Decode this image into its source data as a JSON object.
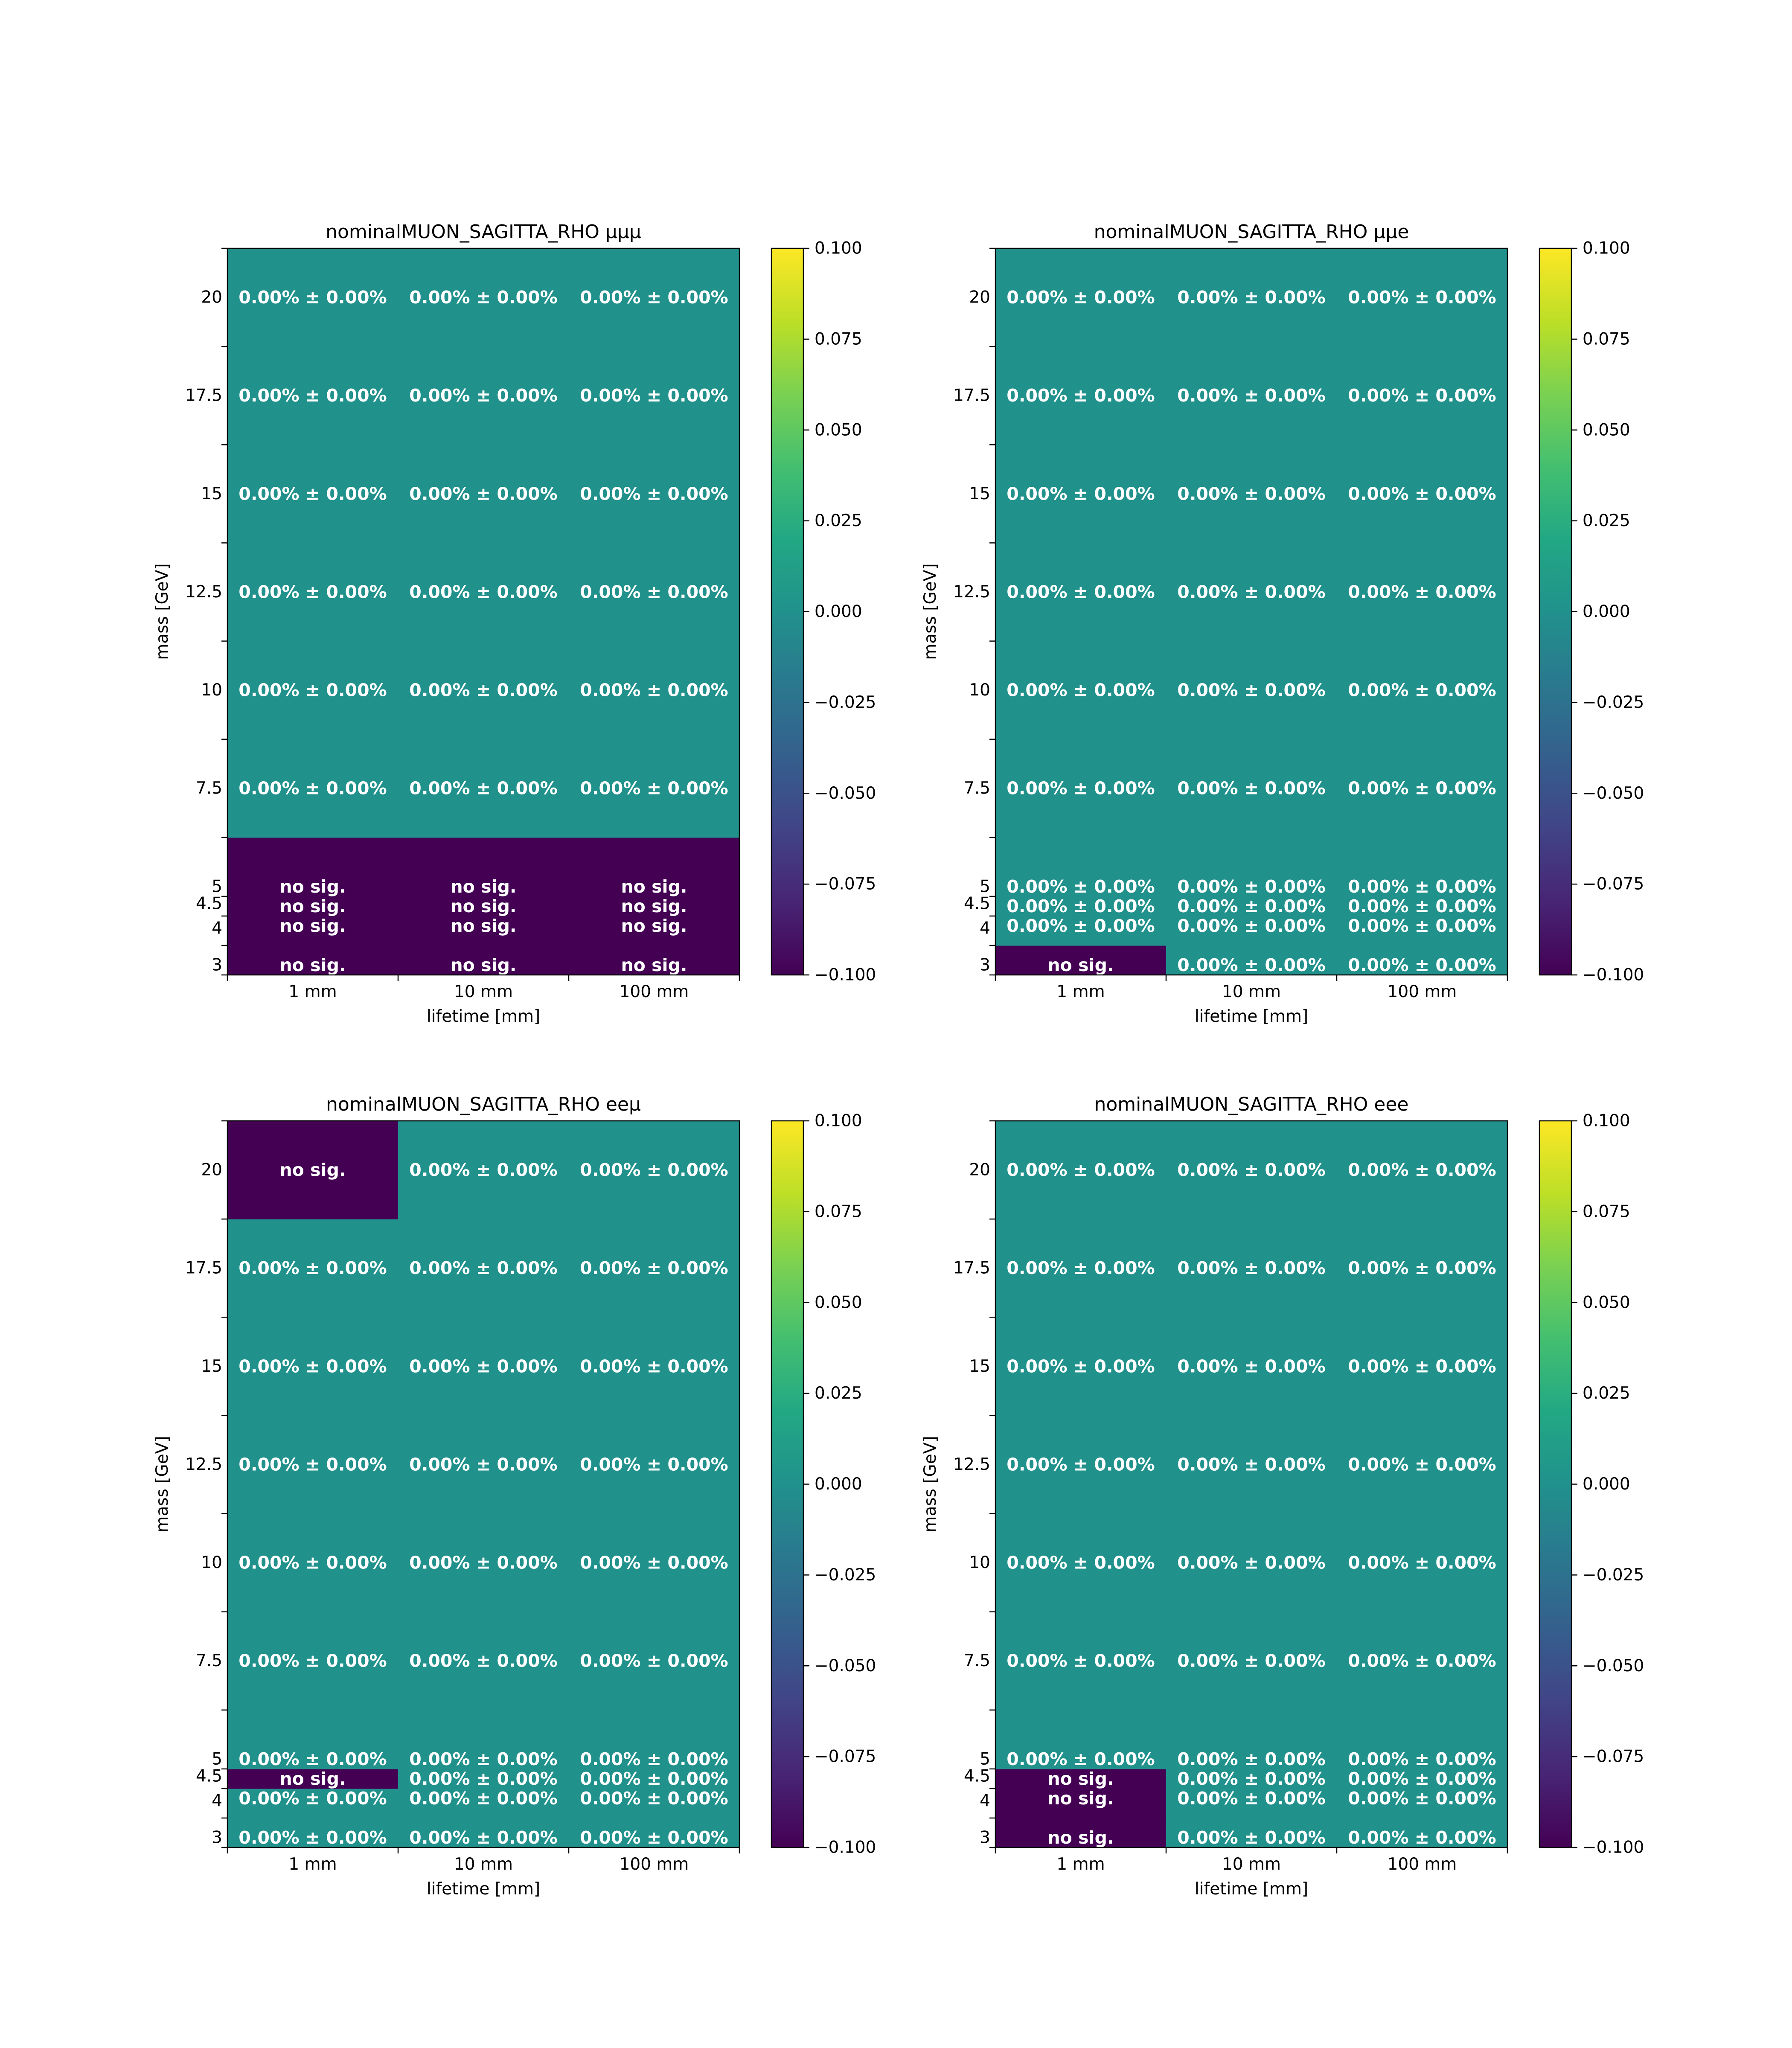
{
  "colorscale": {
    "name": "viridis",
    "stops": [
      "#440154",
      "#482475",
      "#414487",
      "#355f8d",
      "#2a788e",
      "#21918c",
      "#22a884",
      "#44bf70",
      "#7ad151",
      "#bddf26",
      "#fde725"
    ]
  },
  "chart_data": [
    {
      "type": "heatmap",
      "title": "nominalMUON_SAGITTA_RHO μμμ",
      "xlabel": "lifetime [mm]",
      "ylabel": "mass [GeV]",
      "x_ticklabels": [
        "1 mm",
        "10 mm",
        "100 mm"
      ],
      "y_ticks": [
        3,
        4,
        4.5,
        5,
        7.5,
        10,
        12.5,
        15,
        17.5,
        20
      ],
      "y_ticklabels": [
        "3",
        "4",
        "4.5",
        "5",
        "7.5",
        "10",
        "12.5",
        "15",
        "17.5",
        "20"
      ],
      "colorbar_ticks": [
        "0.100",
        "0.075",
        "0.050",
        "0.025",
        "0.000",
        "−0.025",
        "−0.050",
        "−0.075",
        "−0.100"
      ],
      "clim": [
        -0.1,
        0.1
      ],
      "values": [
        [
          -0.1,
          -0.1,
          -0.1
        ],
        [
          -0.1,
          -0.1,
          -0.1
        ],
        [
          -0.1,
          -0.1,
          -0.1
        ],
        [
          -0.1,
          -0.1,
          -0.1
        ],
        [
          0,
          0,
          0
        ],
        [
          0,
          0,
          0
        ],
        [
          0,
          0,
          0
        ],
        [
          0,
          0,
          0
        ],
        [
          0,
          0,
          0
        ],
        [
          0,
          0,
          0
        ]
      ],
      "labels": [
        [
          "no sig.",
          "no sig.",
          "no sig."
        ],
        [
          "no sig.",
          "no sig.",
          "no sig."
        ],
        [
          "no sig.",
          "no sig.",
          "no sig."
        ],
        [
          "no sig.",
          "no sig.",
          "no sig."
        ],
        [
          "0.00% ± 0.00%",
          "0.00% ± 0.00%",
          "0.00% ± 0.00%"
        ],
        [
          "0.00% ± 0.00%",
          "0.00% ± 0.00%",
          "0.00% ± 0.00%"
        ],
        [
          "0.00% ± 0.00%",
          "0.00% ± 0.00%",
          "0.00% ± 0.00%"
        ],
        [
          "0.00% ± 0.00%",
          "0.00% ± 0.00%",
          "0.00% ± 0.00%"
        ],
        [
          "0.00% ± 0.00%",
          "0.00% ± 0.00%",
          "0.00% ± 0.00%"
        ],
        [
          "0.00% ± 0.00%",
          "0.00% ± 0.00%",
          "0.00% ± 0.00%"
        ]
      ]
    },
    {
      "type": "heatmap",
      "title": "nominalMUON_SAGITTA_RHO μμe",
      "xlabel": "lifetime [mm]",
      "ylabel": "mass [GeV]",
      "x_ticklabels": [
        "1 mm",
        "10 mm",
        "100 mm"
      ],
      "y_ticks": [
        3,
        4,
        4.5,
        5,
        7.5,
        10,
        12.5,
        15,
        17.5,
        20
      ],
      "y_ticklabels": [
        "3",
        "4",
        "4.5",
        "5",
        "7.5",
        "10",
        "12.5",
        "15",
        "17.5",
        "20"
      ],
      "colorbar_ticks": [
        "0.100",
        "0.075",
        "0.050",
        "0.025",
        "0.000",
        "−0.025",
        "−0.050",
        "−0.075",
        "−0.100"
      ],
      "clim": [
        -0.1,
        0.1
      ],
      "values": [
        [
          -0.1,
          0,
          0
        ],
        [
          0,
          0,
          0
        ],
        [
          0,
          0,
          0
        ],
        [
          0,
          0,
          0
        ],
        [
          0,
          0,
          0
        ],
        [
          0,
          0,
          0
        ],
        [
          0,
          0,
          0
        ],
        [
          0,
          0,
          0
        ],
        [
          0,
          0,
          0
        ],
        [
          0,
          0,
          0
        ]
      ],
      "labels": [
        [
          "no sig.",
          "0.00% ± 0.00%",
          "0.00% ± 0.00%"
        ],
        [
          "0.00% ± 0.00%",
          "0.00% ± 0.00%",
          "0.00% ± 0.00%"
        ],
        [
          "0.00% ± 0.00%",
          "0.00% ± 0.00%",
          "0.00% ± 0.00%"
        ],
        [
          "0.00% ± 0.00%",
          "0.00% ± 0.00%",
          "0.00% ± 0.00%"
        ],
        [
          "0.00% ± 0.00%",
          "0.00% ± 0.00%",
          "0.00% ± 0.00%"
        ],
        [
          "0.00% ± 0.00%",
          "0.00% ± 0.00%",
          "0.00% ± 0.00%"
        ],
        [
          "0.00% ± 0.00%",
          "0.00% ± 0.00%",
          "0.00% ± 0.00%"
        ],
        [
          "0.00% ± 0.00%",
          "0.00% ± 0.00%",
          "0.00% ± 0.00%"
        ],
        [
          "0.00% ± 0.00%",
          "0.00% ± 0.00%",
          "0.00% ± 0.00%"
        ],
        [
          "0.00% ± 0.00%",
          "0.00% ± 0.00%",
          "0.00% ± 0.00%"
        ]
      ]
    },
    {
      "type": "heatmap",
      "title": "nominalMUON_SAGITTA_RHO eeμ",
      "xlabel": "lifetime [mm]",
      "ylabel": "mass [GeV]",
      "x_ticklabels": [
        "1 mm",
        "10 mm",
        "100 mm"
      ],
      "y_ticks": [
        3,
        4,
        4.5,
        5,
        7.5,
        10,
        12.5,
        15,
        17.5,
        20
      ],
      "y_ticklabels": [
        "3",
        "4",
        "4.5",
        "5",
        "7.5",
        "10",
        "12.5",
        "15",
        "17.5",
        "20"
      ],
      "colorbar_ticks": [
        "0.100",
        "0.075",
        "0.050",
        "0.025",
        "0.000",
        "−0.025",
        "−0.050",
        "−0.075",
        "−0.100"
      ],
      "clim": [
        -0.1,
        0.1
      ],
      "values": [
        [
          0,
          0,
          0
        ],
        [
          0,
          0,
          0
        ],
        [
          -0.1,
          0,
          0
        ],
        [
          0,
          0,
          0
        ],
        [
          0,
          0,
          0
        ],
        [
          0,
          0,
          0
        ],
        [
          0,
          0,
          0
        ],
        [
          0,
          0,
          0
        ],
        [
          0,
          0,
          0
        ],
        [
          -0.1,
          0,
          0
        ]
      ],
      "labels": [
        [
          "0.00% ± 0.00%",
          "0.00% ± 0.00%",
          "0.00% ± 0.00%"
        ],
        [
          "0.00% ± 0.00%",
          "0.00% ± 0.00%",
          "0.00% ± 0.00%"
        ],
        [
          "no sig.",
          "0.00% ± 0.00%",
          "0.00% ± 0.00%"
        ],
        [
          "0.00% ± 0.00%",
          "0.00% ± 0.00%",
          "0.00% ± 0.00%"
        ],
        [
          "0.00% ± 0.00%",
          "0.00% ± 0.00%",
          "0.00% ± 0.00%"
        ],
        [
          "0.00% ± 0.00%",
          "0.00% ± 0.00%",
          "0.00% ± 0.00%"
        ],
        [
          "0.00% ± 0.00%",
          "0.00% ± 0.00%",
          "0.00% ± 0.00%"
        ],
        [
          "0.00% ± 0.00%",
          "0.00% ± 0.00%",
          "0.00% ± 0.00%"
        ],
        [
          "0.00% ± 0.00%",
          "0.00% ± 0.00%",
          "0.00% ± 0.00%"
        ],
        [
          "no sig.",
          "0.00% ± 0.00%",
          "0.00% ± 0.00%"
        ]
      ]
    },
    {
      "type": "heatmap",
      "title": "nominalMUON_SAGITTA_RHO eee",
      "xlabel": "lifetime [mm]",
      "ylabel": "mass [GeV]",
      "x_ticklabels": [
        "1 mm",
        "10 mm",
        "100 mm"
      ],
      "y_ticks": [
        3,
        4,
        4.5,
        5,
        7.5,
        10,
        12.5,
        15,
        17.5,
        20
      ],
      "y_ticklabels": [
        "3",
        "4",
        "4.5",
        "5",
        "7.5",
        "10",
        "12.5",
        "15",
        "17.5",
        "20"
      ],
      "colorbar_ticks": [
        "0.100",
        "0.075",
        "0.050",
        "0.025",
        "0.000",
        "−0.025",
        "−0.050",
        "−0.075",
        "−0.100"
      ],
      "clim": [
        -0.1,
        0.1
      ],
      "values": [
        [
          -0.1,
          0,
          0
        ],
        [
          -0.1,
          0,
          0
        ],
        [
          -0.1,
          0,
          0
        ],
        [
          0,
          0,
          0
        ],
        [
          0,
          0,
          0
        ],
        [
          0,
          0,
          0
        ],
        [
          0,
          0,
          0
        ],
        [
          0,
          0,
          0
        ],
        [
          0,
          0,
          0
        ],
        [
          0,
          0,
          0
        ]
      ],
      "labels": [
        [
          "no sig.",
          "0.00% ± 0.00%",
          "0.00% ± 0.00%"
        ],
        [
          "no sig.",
          "0.00% ± 0.00%",
          "0.00% ± 0.00%"
        ],
        [
          "no sig.",
          "0.00% ± 0.00%",
          "0.00% ± 0.00%"
        ],
        [
          "0.00% ± 0.00%",
          "0.00% ± 0.00%",
          "0.00% ± 0.00%"
        ],
        [
          "0.00% ± 0.00%",
          "0.00% ± 0.00%",
          "0.00% ± 0.00%"
        ],
        [
          "0.00% ± 0.00%",
          "0.00% ± 0.00%",
          "0.00% ± 0.00%"
        ],
        [
          "0.00% ± 0.00%",
          "0.00% ± 0.00%",
          "0.00% ± 0.00%"
        ],
        [
          "0.00% ± 0.00%",
          "0.00% ± 0.00%",
          "0.00% ± 0.00%"
        ],
        [
          "0.00% ± 0.00%",
          "0.00% ± 0.00%",
          "0.00% ± 0.00%"
        ],
        [
          "0.00% ± 0.00%",
          "0.00% ± 0.00%",
          "0.00% ± 0.00%"
        ]
      ]
    }
  ]
}
